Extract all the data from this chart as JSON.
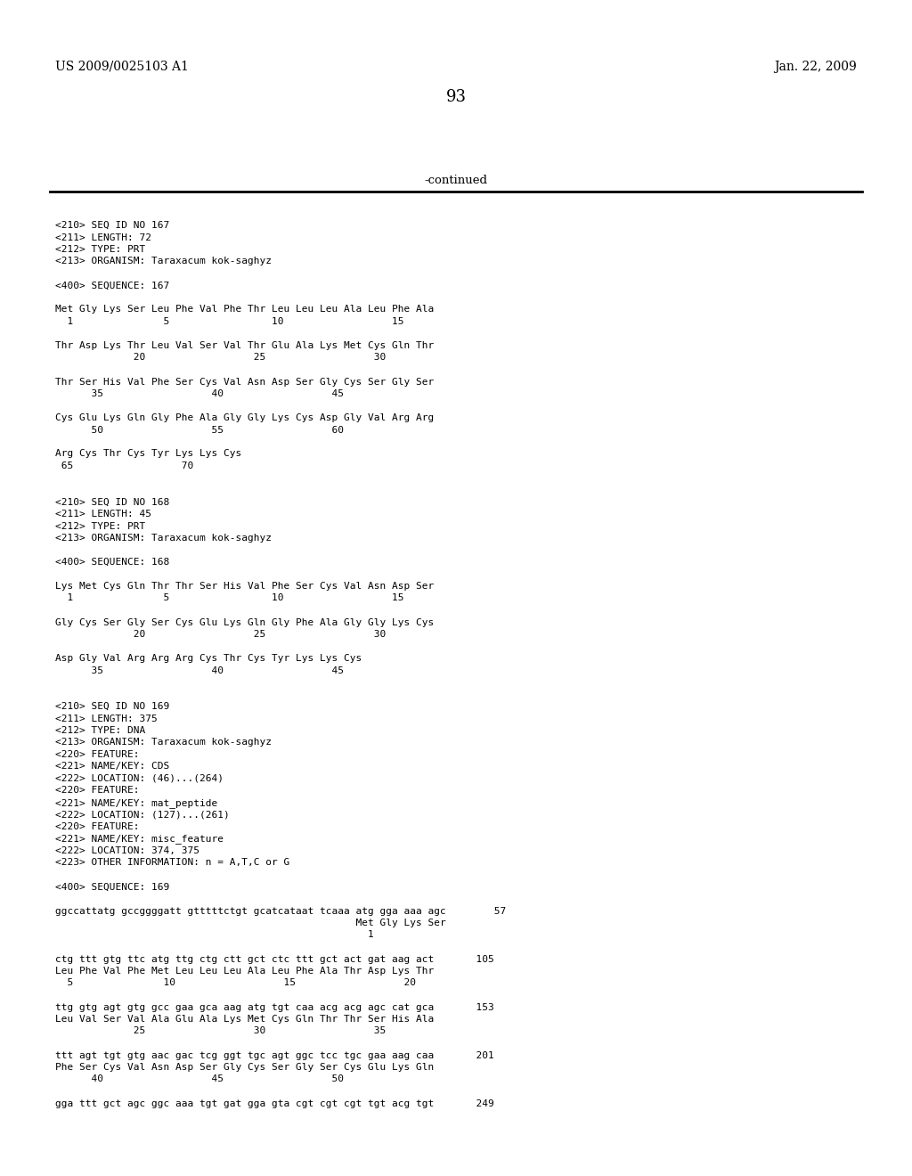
{
  "header_left": "US 2009/0025103 A1",
  "header_right": "Jan. 22, 2009",
  "page_number": "93",
  "continued_text": "-continued",
  "background_color": "#ffffff",
  "text_color": "#000000",
  "mono_size": 8.0,
  "header_size": 10.0,
  "page_size": 13.0,
  "content_lines": [
    {
      "text": "<210> SEQ ID NO 167",
      "blank_before": 0
    },
    {
      "text": "<211> LENGTH: 72",
      "blank_before": 0
    },
    {
      "text": "<212> TYPE: PRT",
      "blank_before": 0
    },
    {
      "text": "<213> ORGANISM: Taraxacum kok-saghyz",
      "blank_before": 0
    },
    {
      "text": "",
      "blank_before": 0
    },
    {
      "text": "<400> SEQUENCE: 167",
      "blank_before": 0
    },
    {
      "text": "",
      "blank_before": 0
    },
    {
      "text": "Met Gly Lys Ser Leu Phe Val Phe Thr Leu Leu Leu Ala Leu Phe Ala",
      "blank_before": 0
    },
    {
      "text": "  1               5                 10                  15",
      "blank_before": 0
    },
    {
      "text": "",
      "blank_before": 0
    },
    {
      "text": "Thr Asp Lys Thr Leu Val Ser Val Thr Glu Ala Lys Met Cys Gln Thr",
      "blank_before": 0
    },
    {
      "text": "             20                  25                  30",
      "blank_before": 0
    },
    {
      "text": "",
      "blank_before": 0
    },
    {
      "text": "Thr Ser His Val Phe Ser Cys Val Asn Asp Ser Gly Cys Ser Gly Ser",
      "blank_before": 0
    },
    {
      "text": "      35                  40                  45",
      "blank_before": 0
    },
    {
      "text": "",
      "blank_before": 0
    },
    {
      "text": "Cys Glu Lys Gln Gly Phe Ala Gly Gly Lys Cys Asp Gly Val Arg Arg",
      "blank_before": 0
    },
    {
      "text": "      50                  55                  60",
      "blank_before": 0
    },
    {
      "text": "",
      "blank_before": 0
    },
    {
      "text": "Arg Cys Thr Cys Tyr Lys Lys Cys",
      "blank_before": 0
    },
    {
      "text": " 65                  70",
      "blank_before": 0
    },
    {
      "text": "",
      "blank_before": 0
    },
    {
      "text": "",
      "blank_before": 0
    },
    {
      "text": "<210> SEQ ID NO 168",
      "blank_before": 0
    },
    {
      "text": "<211> LENGTH: 45",
      "blank_before": 0
    },
    {
      "text": "<212> TYPE: PRT",
      "blank_before": 0
    },
    {
      "text": "<213> ORGANISM: Taraxacum kok-saghyz",
      "blank_before": 0
    },
    {
      "text": "",
      "blank_before": 0
    },
    {
      "text": "<400> SEQUENCE: 168",
      "blank_before": 0
    },
    {
      "text": "",
      "blank_before": 0
    },
    {
      "text": "Lys Met Cys Gln Thr Thr Ser His Val Phe Ser Cys Val Asn Asp Ser",
      "blank_before": 0
    },
    {
      "text": "  1               5                 10                  15",
      "blank_before": 0
    },
    {
      "text": "",
      "blank_before": 0
    },
    {
      "text": "Gly Cys Ser Gly Ser Cys Glu Lys Gln Gly Phe Ala Gly Gly Lys Cys",
      "blank_before": 0
    },
    {
      "text": "             20                  25                  30",
      "blank_before": 0
    },
    {
      "text": "",
      "blank_before": 0
    },
    {
      "text": "Asp Gly Val Arg Arg Arg Cys Thr Cys Tyr Lys Lys Cys",
      "blank_before": 0
    },
    {
      "text": "      35                  40                  45",
      "blank_before": 0
    },
    {
      "text": "",
      "blank_before": 0
    },
    {
      "text": "",
      "blank_before": 0
    },
    {
      "text": "<210> SEQ ID NO 169",
      "blank_before": 0
    },
    {
      "text": "<211> LENGTH: 375",
      "blank_before": 0
    },
    {
      "text": "<212> TYPE: DNA",
      "blank_before": 0
    },
    {
      "text": "<213> ORGANISM: Taraxacum kok-saghyz",
      "blank_before": 0
    },
    {
      "text": "<220> FEATURE:",
      "blank_before": 0
    },
    {
      "text": "<221> NAME/KEY: CDS",
      "blank_before": 0
    },
    {
      "text": "<222> LOCATION: (46)...(264)",
      "blank_before": 0
    },
    {
      "text": "<220> FEATURE:",
      "blank_before": 0
    },
    {
      "text": "<221> NAME/KEY: mat_peptide",
      "blank_before": 0
    },
    {
      "text": "<222> LOCATION: (127)...(261)",
      "blank_before": 0
    },
    {
      "text": "<220> FEATURE:",
      "blank_before": 0
    },
    {
      "text": "<221> NAME/KEY: misc_feature",
      "blank_before": 0
    },
    {
      "text": "<222> LOCATION: 374, 375",
      "blank_before": 0
    },
    {
      "text": "<223> OTHER INFORMATION: n = A,T,C or G",
      "blank_before": 0
    },
    {
      "text": "",
      "blank_before": 0
    },
    {
      "text": "<400> SEQUENCE: 169",
      "blank_before": 0
    },
    {
      "text": "",
      "blank_before": 0
    },
    {
      "text": "ggccattatg gccggggatt gtttttctgt gcatcataat tcaaa atg gga aaa agc        57",
      "blank_before": 0
    },
    {
      "text": "                                                  Met Gly Lys Ser",
      "blank_before": 0
    },
    {
      "text": "                                                    1",
      "blank_before": 0
    },
    {
      "text": "",
      "blank_before": 0
    },
    {
      "text": "ctg ttt gtg ttc atg ttg ctg ctt gct ctc ttt gct act gat aag act       105",
      "blank_before": 0
    },
    {
      "text": "Leu Phe Val Phe Met Leu Leu Leu Ala Leu Phe Ala Thr Asp Lys Thr",
      "blank_before": 0
    },
    {
      "text": "  5               10                  15                  20",
      "blank_before": 0
    },
    {
      "text": "",
      "blank_before": 0
    },
    {
      "text": "ttg gtg agt gtg gcc gaa gca aag atg tgt caa acg acg agc cat gca       153",
      "blank_before": 0
    },
    {
      "text": "Leu Val Ser Val Ala Glu Ala Lys Met Cys Gln Thr Thr Ser His Ala",
      "blank_before": 0
    },
    {
      "text": "             25                  30                  35",
      "blank_before": 0
    },
    {
      "text": "",
      "blank_before": 0
    },
    {
      "text": "ttt agt tgt gtg aac gac tcg ggt tgc agt ggc tcc tgc gaa aag caa       201",
      "blank_before": 0
    },
    {
      "text": "Phe Ser Cys Val Asn Asp Ser Gly Cys Ser Gly Ser Cys Glu Lys Gln",
      "blank_before": 0
    },
    {
      "text": "      40                  45                  50",
      "blank_before": 0
    },
    {
      "text": "",
      "blank_before": 0
    },
    {
      "text": "gga ttt gct agc ggc aaa tgt gat gga gta cgt cgt cgt tgt acg tgt       249",
      "blank_before": 0
    }
  ]
}
